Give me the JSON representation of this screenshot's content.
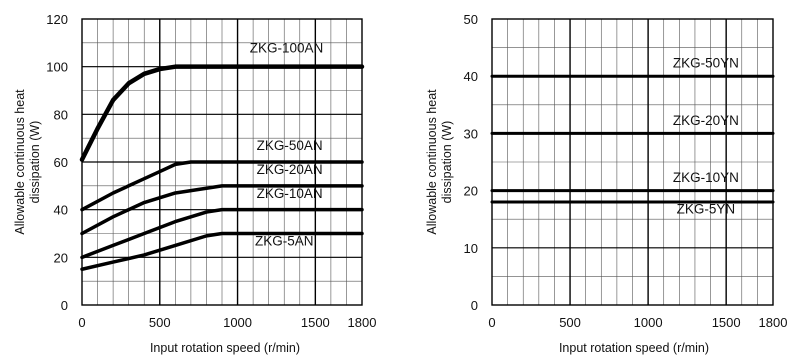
{
  "chart_data": [
    {
      "type": "line",
      "title": "",
      "xlabel": "Input rotation speed    (r/min)",
      "ylabel": "Allowable continuous heat\ndissipation (W)",
      "xlim": [
        0,
        1800
      ],
      "ylim": [
        0,
        120
      ],
      "x_ticks": [
        0,
        500,
        1000,
        1500,
        1800
      ],
      "y_ticks": [
        0,
        20,
        40,
        60,
        80,
        100,
        120
      ],
      "grid": true,
      "series": [
        {
          "name": "ZKG-100AN",
          "x": [
            0,
            100,
            200,
            300,
            400,
            500,
            600,
            1800
          ],
          "y": [
            61,
            74,
            86,
            93,
            97,
            99,
            100,
            100
          ]
        },
        {
          "name": "ZKG-50AN",
          "x": [
            0,
            200,
            400,
            500,
            600,
            700,
            1800
          ],
          "y": [
            40,
            47,
            53,
            56,
            59,
            60,
            60
          ]
        },
        {
          "name": "ZKG-20AN",
          "x": [
            0,
            200,
            400,
            600,
            800,
            900,
            1800
          ],
          "y": [
            30,
            37,
            43,
            47,
            49,
            50,
            50
          ]
        },
        {
          "name": "ZKG-10AN",
          "x": [
            0,
            200,
            400,
            600,
            800,
            900,
            1800
          ],
          "y": [
            20,
            25,
            30,
            35,
            39,
            40,
            40
          ]
        },
        {
          "name": "ZKG-5AN",
          "x": [
            0,
            200,
            400,
            600,
            800,
            900,
            1800
          ],
          "y": [
            15,
            18,
            21,
            25,
            29,
            30,
            30
          ]
        }
      ]
    },
    {
      "type": "line",
      "title": "",
      "xlabel": "Input rotation speed    (r/min)",
      "ylabel": "Allowable continuous heat\ndissipation (W)",
      "xlim": [
        0,
        1800
      ],
      "ylim": [
        0,
        50
      ],
      "x_ticks": [
        0,
        500,
        1000,
        1500,
        1800
      ],
      "y_ticks": [
        0,
        10,
        20,
        30,
        40,
        50
      ],
      "grid": true,
      "series": [
        {
          "name": "ZKG-50YN",
          "x": [
            0,
            1800
          ],
          "y": [
            40,
            40
          ]
        },
        {
          "name": "ZKG-20YN",
          "x": [
            0,
            1800
          ],
          "y": [
            30,
            30
          ]
        },
        {
          "name": "ZKG-10YN",
          "x": [
            0,
            1800
          ],
          "y": [
            20,
            20
          ]
        },
        {
          "name": "ZKG-5YN",
          "x": [
            0,
            1800
          ],
          "y": [
            18,
            18
          ]
        }
      ]
    }
  ]
}
